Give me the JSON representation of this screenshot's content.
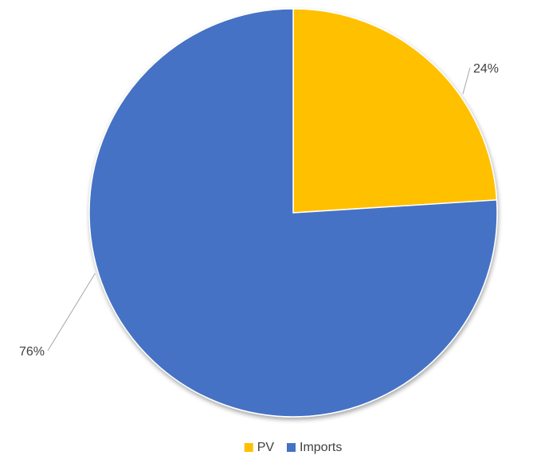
{
  "chart_data": {
    "type": "pie",
    "series": [
      {
        "name": "PV",
        "value": 24,
        "label": "24%",
        "color": "#FFC000"
      },
      {
        "name": "Imports",
        "value": 76,
        "label": "76%",
        "color": "#4472C4"
      }
    ],
    "start_angle": "12 o'clock",
    "direction": "clockwise",
    "legend_position": "bottom",
    "label_style": "outside-with-leader-lines"
  }
}
